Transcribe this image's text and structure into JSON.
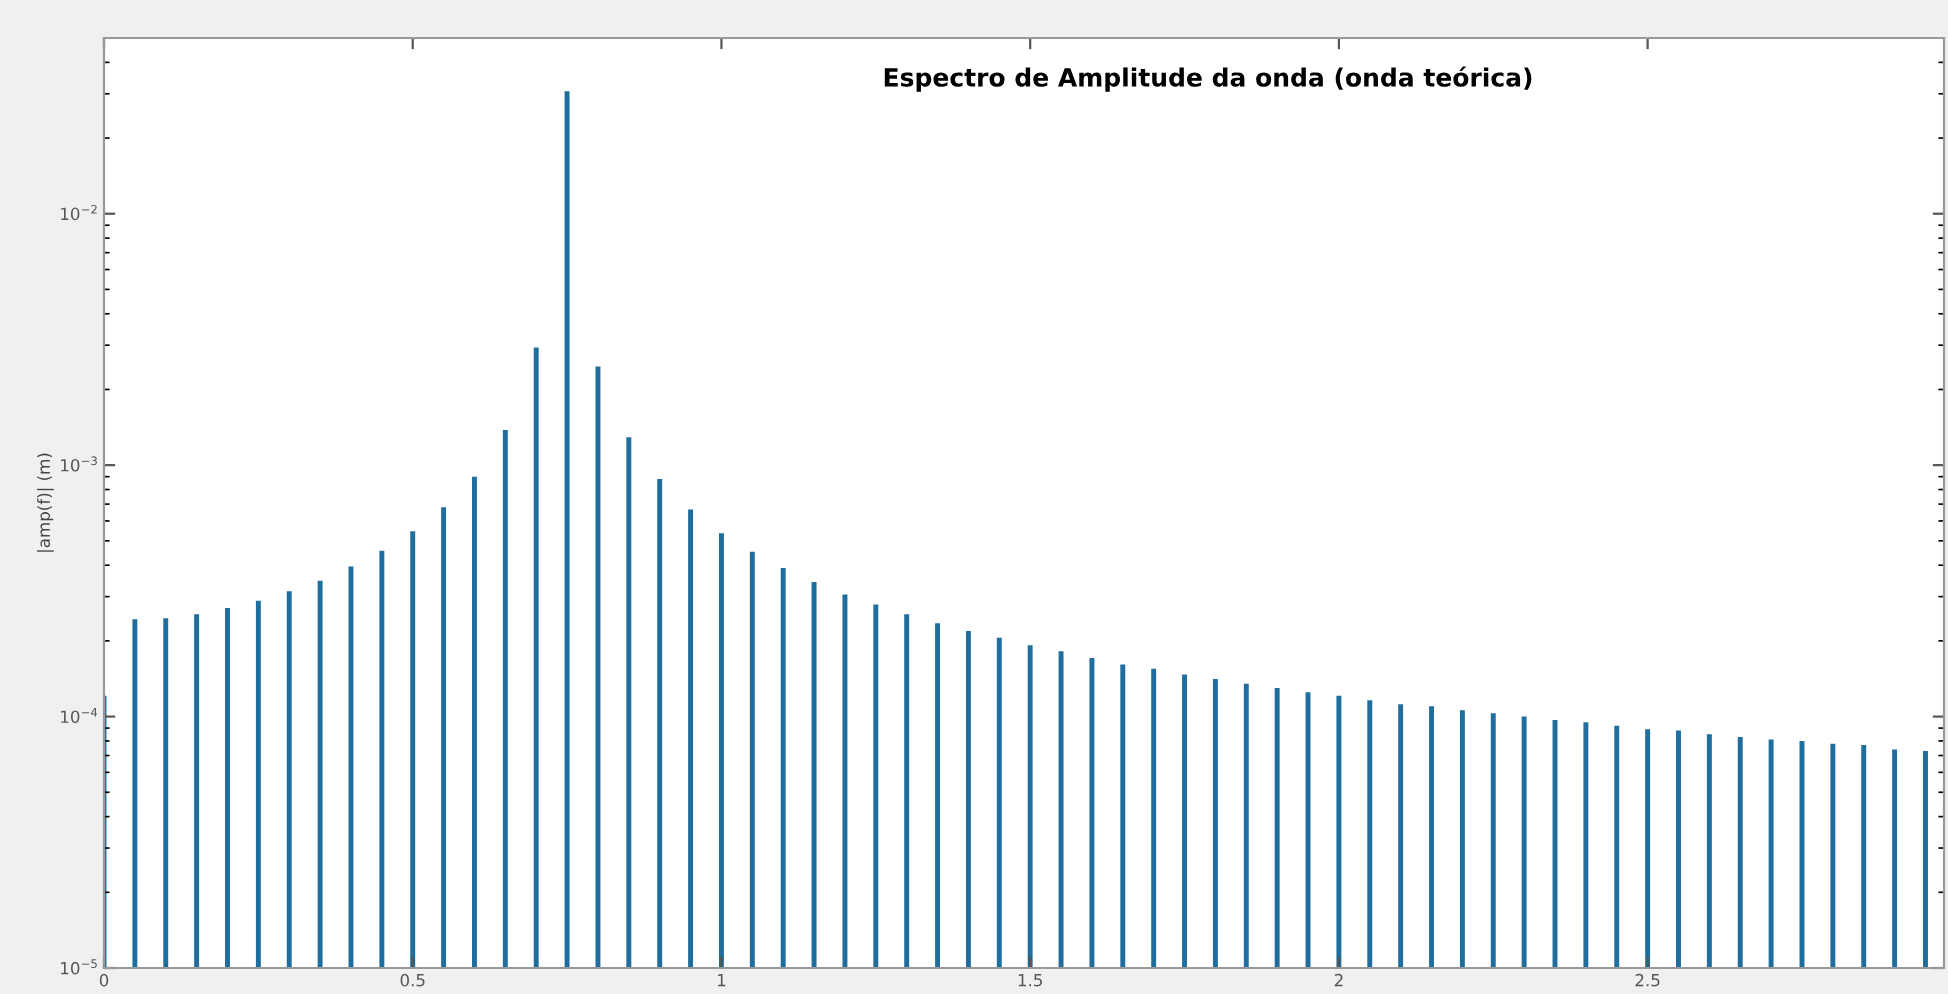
{
  "chart_data": {
    "type": "bar",
    "title": "Espectro de Amplitude da onda (onda teórica)",
    "ylabel": "|amp(f)| (m)",
    "x": [
      0,
      0.05,
      0.1,
      0.15,
      0.2,
      0.25,
      0.3,
      0.35,
      0.4,
      0.45,
      0.5,
      0.55,
      0.6,
      0.65,
      0.7,
      0.75,
      0.8,
      0.85,
      0.9,
      0.95,
      1.0,
      1.05,
      1.1,
      1.15,
      1.2,
      1.25,
      1.3,
      1.35,
      1.4,
      1.45,
      1.5,
      1.55,
      1.6,
      1.65,
      1.7,
      1.75,
      1.8,
      1.85,
      1.9,
      1.95,
      2.0,
      2.05,
      2.1,
      2.15,
      2.2,
      2.25,
      2.3,
      2.35,
      2.4,
      2.45,
      2.5,
      2.55,
      2.6,
      2.65,
      2.7,
      2.75,
      2.8,
      2.85,
      2.9,
      2.95
    ],
    "values": [
      0.000121,
      0.000244,
      0.000246,
      0.000255,
      0.00027,
      0.000289,
      0.000315,
      0.000347,
      0.000395,
      0.000457,
      0.000546,
      0.00068,
      0.0009,
      0.00138,
      0.00294,
      0.0307,
      0.00247,
      0.00129,
      0.00088,
      0.000667,
      0.000536,
      0.000452,
      0.00039,
      0.000343,
      0.000306,
      0.000279,
      0.000255,
      0.000235,
      0.000219,
      0.000206,
      0.000192,
      0.000182,
      0.000171,
      0.000161,
      0.000155,
      0.000147,
      0.000141,
      0.000135,
      0.00013,
      0.000125,
      0.000121,
      0.000116,
      0.000112,
      0.00011,
      0.000106,
      0.000103,
      0.0001,
      9.7e-05,
      9.5e-05,
      9.2e-05,
      8.9e-05,
      8.8e-05,
      8.5e-05,
      8.3e-05,
      8.1e-05,
      8e-05,
      7.8e-05,
      7.7e-05,
      7.4e-05,
      7.3e-05
    ],
    "color": "#1f6e9e",
    "log": "y",
    "grid": false,
    "legend": false,
    "xlim": [
      0,
      2.98
    ],
    "ylim": [
      1e-05,
      0.05
    ],
    "xticks": [
      0,
      0.5,
      1,
      1.5,
      2,
      2.5
    ],
    "yticks": [
      {
        "value": 1e-05,
        "label": "10$^{−5}$"
      },
      {
        "value": 0.0001,
        "label": "10$^{−4}$"
      },
      {
        "value": 0.001,
        "label": "10$^{−3}$"
      },
      {
        "value": 0.01,
        "label": "10$^{−2}$"
      }
    ]
  }
}
